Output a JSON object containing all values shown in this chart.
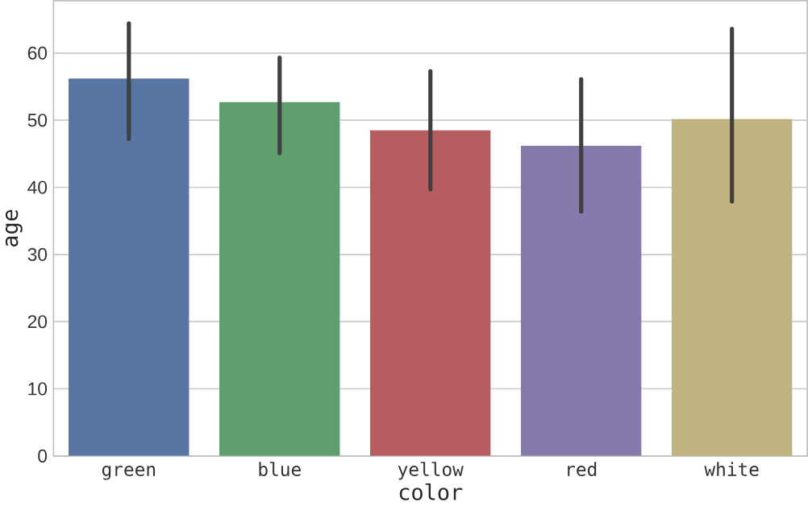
{
  "chart_data": {
    "type": "bar",
    "xlabel": "color",
    "ylabel": "age",
    "categories": [
      "green",
      "blue",
      "yellow",
      "red",
      "white"
    ],
    "values": [
      56.2,
      52.7,
      48.5,
      46.2,
      50.2
    ],
    "colors": [
      "#5875a4",
      "#5f9e6e",
      "#b55d60",
      "#857aab",
      "#c1b37f"
    ],
    "errors": [
      [
        47.2,
        64.4
      ],
      [
        45.1,
        59.3
      ],
      [
        39.7,
        57.3
      ],
      [
        36.4,
        56.1
      ],
      [
        37.9,
        63.6
      ]
    ],
    "ylim": [
      0,
      67.8
    ],
    "yticks": [
      0,
      10,
      20,
      30,
      40,
      50,
      60
    ],
    "grid": "y"
  }
}
